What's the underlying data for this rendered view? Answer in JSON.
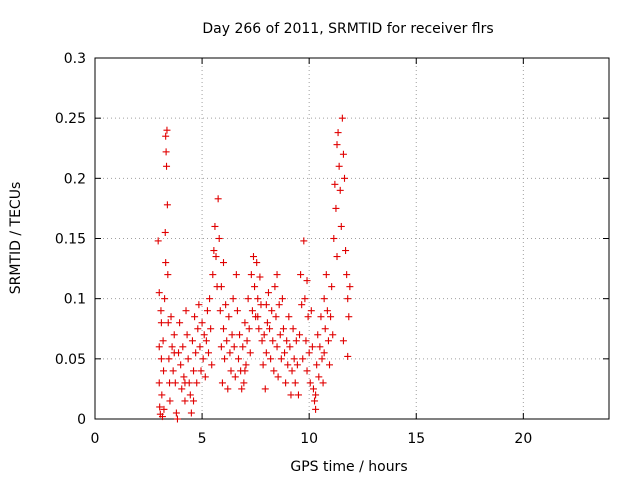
{
  "chart_data": {
    "type": "scatter",
    "title": "Day 266 of 2011, SRMTID for receiver flrs",
    "xlabel": "GPS time / hours",
    "ylabel": "SRMTID / TECUs",
    "xlim": [
      0,
      24
    ],
    "ylim": [
      0,
      0.3
    ],
    "xticks": [
      "0",
      "5",
      "10",
      "15",
      "20"
    ],
    "yticks": [
      "0",
      "0.05",
      "0.1",
      "0.15",
      "0.2",
      "0.25",
      "0.3"
    ],
    "grid": true,
    "marker": "+",
    "color": "#e00000",
    "series": [
      {
        "name": "SRMTID",
        "points": [
          [
            2.95,
            0.148
          ],
          [
            3.0,
            0.105
          ],
          [
            3.0,
            0.06
          ],
          [
            3.0,
            0.03
          ],
          [
            3.02,
            0.01
          ],
          [
            3.05,
            0.004
          ],
          [
            3.08,
            0.09
          ],
          [
            3.1,
            0.05
          ],
          [
            3.12,
            0.02
          ],
          [
            3.15,
            0.002
          ],
          [
            3.18,
            0.065
          ],
          [
            3.2,
            0.04
          ],
          [
            3.22,
            0.008
          ],
          [
            3.25,
            0.1
          ],
          [
            3.28,
            0.155
          ],
          [
            3.3,
            0.13
          ],
          [
            3.3,
            0.235
          ],
          [
            3.32,
            0.222
          ],
          [
            3.34,
            0.21
          ],
          [
            3.36,
            0.24
          ],
          [
            3.38,
            0.178
          ],
          [
            3.4,
            0.12
          ],
          [
            3.42,
            0.08
          ],
          [
            3.45,
            0.05
          ],
          [
            3.48,
            0.03
          ],
          [
            3.5,
            0.015
          ],
          [
            3.55,
            0.085
          ],
          [
            3.6,
            0.06
          ],
          [
            3.65,
            0.04
          ],
          [
            3.7,
            0.07
          ],
          [
            3.75,
            0.03
          ],
          [
            3.8,
            0.005
          ],
          [
            3.85,
            0.0
          ],
          [
            3.9,
            0.055
          ],
          [
            3.95,
            0.08
          ],
          [
            4.0,
            0.045
          ],
          [
            4.05,
            0.025
          ],
          [
            4.1,
            0.06
          ],
          [
            4.15,
            0.035
          ],
          [
            4.2,
            0.015
          ],
          [
            4.25,
            0.09
          ],
          [
            4.3,
            0.07
          ],
          [
            4.35,
            0.05
          ],
          [
            4.4,
            0.03
          ],
          [
            4.45,
            0.02
          ],
          [
            4.5,
            0.005
          ],
          [
            4.55,
            0.065
          ],
          [
            4.6,
            0.04
          ],
          [
            4.65,
            0.085
          ],
          [
            4.7,
            0.055
          ],
          [
            4.75,
            0.03
          ],
          [
            4.8,
            0.075
          ],
          [
            4.85,
            0.095
          ],
          [
            4.9,
            0.06
          ],
          [
            4.95,
            0.04
          ],
          [
            5.0,
            0.08
          ],
          [
            5.05,
            0.05
          ],
          [
            5.1,
            0.07
          ],
          [
            5.15,
            0.035
          ],
          [
            5.2,
            0.065
          ],
          [
            5.25,
            0.09
          ],
          [
            5.3,
            0.055
          ],
          [
            5.35,
            0.1
          ],
          [
            5.4,
            0.075
          ],
          [
            5.45,
            0.045
          ],
          [
            5.5,
            0.12
          ],
          [
            5.55,
            0.14
          ],
          [
            5.6,
            0.16
          ],
          [
            5.65,
            0.135
          ],
          [
            5.7,
            0.11
          ],
          [
            5.75,
            0.183
          ],
          [
            5.8,
            0.15
          ],
          [
            5.85,
            0.09
          ],
          [
            5.9,
            0.06
          ],
          [
            5.95,
            0.03
          ],
          [
            6.0,
            0.075
          ],
          [
            6.05,
            0.05
          ],
          [
            6.1,
            0.095
          ],
          [
            6.15,
            0.065
          ],
          [
            6.2,
            0.025
          ],
          [
            6.25,
            0.085
          ],
          [
            6.3,
            0.055
          ],
          [
            6.35,
            0.04
          ],
          [
            6.4,
            0.07
          ],
          [
            6.45,
            0.1
          ],
          [
            6.5,
            0.06
          ],
          [
            6.55,
            0.035
          ],
          [
            6.6,
            0.12
          ],
          [
            6.65,
            0.09
          ],
          [
            6.7,
            0.05
          ],
          [
            6.75,
            0.07
          ],
          [
            6.8,
            0.04
          ],
          [
            6.85,
            0.025
          ],
          [
            6.9,
            0.06
          ],
          [
            6.95,
            0.03
          ],
          [
            7.0,
            0.08
          ],
          [
            7.05,
            0.045
          ],
          [
            7.1,
            0.065
          ],
          [
            7.15,
            0.1
          ],
          [
            7.2,
            0.075
          ],
          [
            7.25,
            0.055
          ],
          [
            7.3,
            0.12
          ],
          [
            7.35,
            0.09
          ],
          [
            7.4,
            0.135
          ],
          [
            7.45,
            0.11
          ],
          [
            7.5,
            0.085
          ],
          [
            7.55,
            0.13
          ],
          [
            7.6,
            0.1
          ],
          [
            7.65,
            0.075
          ],
          [
            7.7,
            0.118
          ],
          [
            7.75,
            0.095
          ],
          [
            7.8,
            0.065
          ],
          [
            7.85,
            0.045
          ],
          [
            7.9,
            0.07
          ],
          [
            7.95,
            0.025
          ],
          [
            8.0,
            0.055
          ],
          [
            8.05,
            0.08
          ],
          [
            8.1,
            0.105
          ],
          [
            8.15,
            0.075
          ],
          [
            8.2,
            0.05
          ],
          [
            8.25,
            0.09
          ],
          [
            8.3,
            0.065
          ],
          [
            8.35,
            0.04
          ],
          [
            8.4,
            0.11
          ],
          [
            8.45,
            0.085
          ],
          [
            8.5,
            0.06
          ],
          [
            8.55,
            0.035
          ],
          [
            8.6,
            0.095
          ],
          [
            8.65,
            0.07
          ],
          [
            8.7,
            0.05
          ],
          [
            8.75,
            0.1
          ],
          [
            8.8,
            0.075
          ],
          [
            8.85,
            0.055
          ],
          [
            8.9,
            0.03
          ],
          [
            8.95,
            0.065
          ],
          [
            9.0,
            0.045
          ],
          [
            9.05,
            0.085
          ],
          [
            9.1,
            0.06
          ],
          [
            9.15,
            0.02
          ],
          [
            9.2,
            0.04
          ],
          [
            9.25,
            0.075
          ],
          [
            9.3,
            0.05
          ],
          [
            9.35,
            0.03
          ],
          [
            9.4,
            0.065
          ],
          [
            9.45,
            0.045
          ],
          [
            9.5,
            0.02
          ],
          [
            9.55,
            0.07
          ],
          [
            9.6,
            0.12
          ],
          [
            9.65,
            0.095
          ],
          [
            9.7,
            0.05
          ],
          [
            9.75,
            0.148
          ],
          [
            9.8,
            0.1
          ],
          [
            9.85,
            0.065
          ],
          [
            9.9,
            0.04
          ],
          [
            9.95,
            0.085
          ],
          [
            10.0,
            0.055
          ],
          [
            10.05,
            0.03
          ],
          [
            10.1,
            0.09
          ],
          [
            10.15,
            0.06
          ],
          [
            10.2,
            0.025
          ],
          [
            10.25,
            0.015
          ],
          [
            10.3,
            0.008
          ],
          [
            10.35,
            0.045
          ],
          [
            10.4,
            0.07
          ],
          [
            10.45,
            0.035
          ],
          [
            10.5,
            0.06
          ],
          [
            10.55,
            0.085
          ],
          [
            10.6,
            0.05
          ],
          [
            10.65,
            0.03
          ],
          [
            10.7,
            0.1
          ],
          [
            10.75,
            0.075
          ],
          [
            10.8,
            0.12
          ],
          [
            10.85,
            0.09
          ],
          [
            10.9,
            0.065
          ],
          [
            10.95,
            0.045
          ],
          [
            11.0,
            0.085
          ],
          [
            11.05,
            0.11
          ],
          [
            11.1,
            0.07
          ],
          [
            11.15,
            0.15
          ],
          [
            11.2,
            0.195
          ],
          [
            11.25,
            0.175
          ],
          [
            11.3,
            0.228
          ],
          [
            11.35,
            0.238
          ],
          [
            11.4,
            0.21
          ],
          [
            11.45,
            0.19
          ],
          [
            11.5,
            0.16
          ],
          [
            11.55,
            0.25
          ],
          [
            11.6,
            0.22
          ],
          [
            11.65,
            0.2
          ],
          [
            11.7,
            0.14
          ],
          [
            11.75,
            0.12
          ],
          [
            11.8,
            0.1
          ],
          [
            11.85,
            0.085
          ],
          [
            11.9,
            0.11
          ],
          [
            3.1,
            0.08
          ],
          [
            4.2,
            0.03
          ],
          [
            6.0,
            0.13
          ],
          [
            7.6,
            0.085
          ],
          [
            8.5,
            0.12
          ],
          [
            9.9,
            0.115
          ],
          [
            10.7,
            0.055
          ],
          [
            11.3,
            0.135
          ],
          [
            11.6,
            0.065
          ],
          [
            11.8,
            0.052
          ],
          [
            7.0,
            0.04
          ],
          [
            5.9,
            0.11
          ],
          [
            4.6,
            0.015
          ],
          [
            3.7,
            0.055
          ],
          [
            10.3,
            0.02
          ],
          [
            8.0,
            0.095
          ]
        ]
      }
    ]
  }
}
